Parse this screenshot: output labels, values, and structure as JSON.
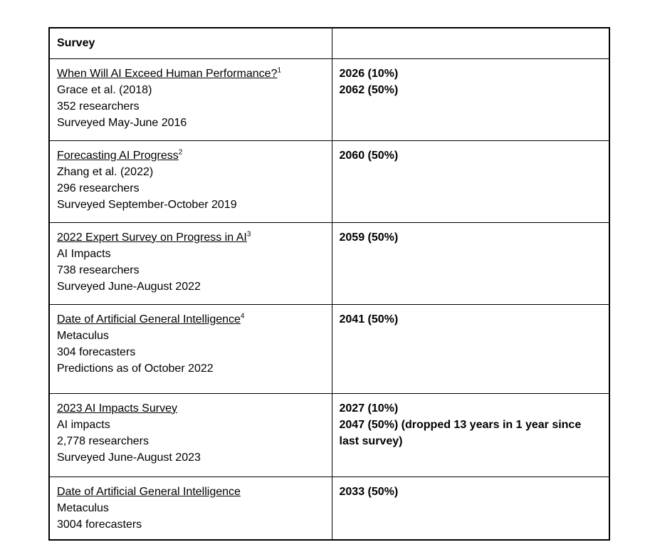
{
  "table": {
    "header": {
      "survey": "Survey",
      "forecast": ""
    },
    "rows": [
      {
        "title": "When Will AI Exceed Human Performance?",
        "footnote": "1",
        "details": [
          "Grace et al. (2018)",
          "352 researchers",
          "Surveyed May-June 2016"
        ],
        "forecasts": [
          "2026 (10%)",
          "2062 (50%)"
        ]
      },
      {
        "title": "Forecasting AI Progress",
        "footnote": "2",
        "details": [
          "Zhang et al. (2022)",
          "296 researchers",
          "Surveyed September-October 2019"
        ],
        "forecasts": [
          "2060 (50%)"
        ]
      },
      {
        "title": "2022 Expert Survey on Progress in AI",
        "footnote": "3",
        "details": [
          "AI Impacts",
          "738 researchers",
          "Surveyed June-August 2022"
        ],
        "forecasts": [
          "2059 (50%)"
        ]
      },
      {
        "title": "Date of Artificial General Intelligence",
        "footnote": "4",
        "details": [
          "Metaculus",
          "304 forecasters",
          "Predictions as of October 2022"
        ],
        "forecasts": [
          "2041 (50%)"
        ]
      },
      {
        "title": "2023 AI Impacts Survey",
        "footnote": "",
        "details": [
          "AI impacts",
          "2,778 researchers",
          "Surveyed June-August 2023"
        ],
        "forecasts": [
          "2027 (10%)",
          "2047 (50%) (dropped 13 years in 1 year since last survey)"
        ]
      },
      {
        "title": "Date of Artificial General Intelligence",
        "footnote": "",
        "details": [
          "Metaculus",
          "3004 forecasters"
        ],
        "forecasts": [
          "2033 (50%)"
        ]
      }
    ]
  }
}
